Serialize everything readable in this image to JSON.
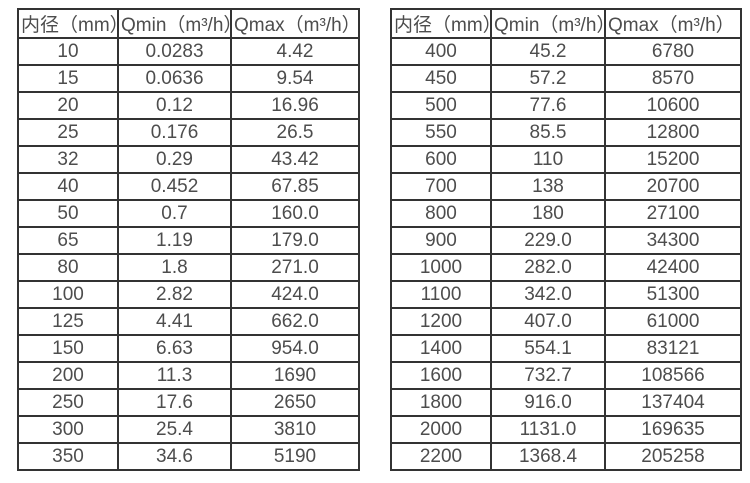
{
  "colors": {
    "background": "#ffffff",
    "text": "#4d4d4d",
    "border": "#333333"
  },
  "chart_data": [
    {
      "type": "table",
      "title": "",
      "columns": [
        "内径（mm）",
        "Qmin（m³/h）",
        "Qmax（m³/h）"
      ],
      "rows": [
        [
          "10",
          "0.0283",
          "4.42"
        ],
        [
          "15",
          "0.0636",
          "9.54"
        ],
        [
          "20",
          "0.12",
          "16.96"
        ],
        [
          "25",
          "0.176",
          "26.5"
        ],
        [
          "32",
          "0.29",
          "43.42"
        ],
        [
          "40",
          "0.452",
          "67.85"
        ],
        [
          "50",
          "0.7",
          "160.0"
        ],
        [
          "65",
          "1.19",
          "179.0"
        ],
        [
          "80",
          "1.8",
          "271.0"
        ],
        [
          "100",
          "2.82",
          "424.0"
        ],
        [
          "125",
          "4.41",
          "662.0"
        ],
        [
          "150",
          "6.63",
          "954.0"
        ],
        [
          "200",
          "11.3",
          "1690"
        ],
        [
          "250",
          "17.6",
          "2650"
        ],
        [
          "300",
          "25.4",
          "3810"
        ],
        [
          "350",
          "34.6",
          "5190"
        ]
      ]
    },
    {
      "type": "table",
      "title": "",
      "columns": [
        "内径（mm）",
        "Qmin（m³/h）",
        "Qmax（m³/h）"
      ],
      "rows": [
        [
          "400",
          "45.2",
          "6780"
        ],
        [
          "450",
          "57.2",
          "8570"
        ],
        [
          "500",
          "77.6",
          "10600"
        ],
        [
          "550",
          "85.5",
          "12800"
        ],
        [
          "600",
          "110",
          "15200"
        ],
        [
          "700",
          "138",
          "20700"
        ],
        [
          "800",
          "180",
          "27100"
        ],
        [
          "900",
          "229.0",
          "34300"
        ],
        [
          "1000",
          "282.0",
          "42400"
        ],
        [
          "1100",
          "342.0",
          "51300"
        ],
        [
          "1200",
          "407.0",
          "61000"
        ],
        [
          "1400",
          "554.1",
          "83121"
        ],
        [
          "1600",
          "732.7",
          "108566"
        ],
        [
          "1800",
          "916.0",
          "137404"
        ],
        [
          "2000",
          "1131.0",
          "169635"
        ],
        [
          "2200",
          "1368.4",
          "205258"
        ]
      ]
    }
  ]
}
